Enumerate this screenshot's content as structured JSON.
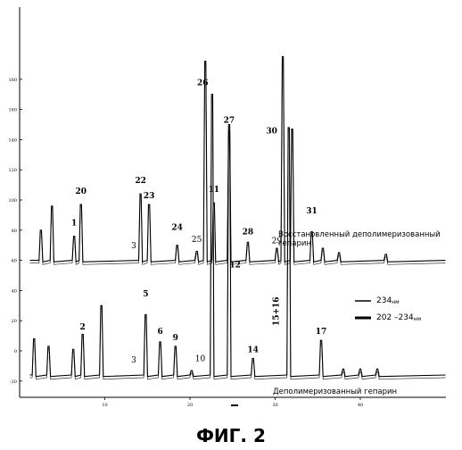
{
  "caption": "ФИГ. 2",
  "chart_data": {
    "type": "line",
    "y_ticks": [
      "180",
      "160",
      "140",
      "120",
      "100",
      "80",
      "60",
      "40",
      "20",
      "0",
      "-20"
    ],
    "x_ticks": [
      "10",
      "20",
      "30",
      "40"
    ],
    "legend": [
      {
        "label": "234",
        "sub": "нм"
      },
      {
        "label": "202 –234",
        "sub": "нм"
      }
    ],
    "panels": [
      {
        "name": "Восстановленный деполимеризованный гепарин",
        "note": [
          "Восстановленный деполимеризованный",
          "гепарин"
        ],
        "baseline": 60,
        "series": [
          {
            "x": 2.5,
            "y": 80
          },
          {
            "x": 3.8,
            "y": 96
          },
          {
            "x": 6.4,
            "y": 76
          },
          {
            "x": 7.2,
            "y": 97
          },
          {
            "x": 14.2,
            "y": 104
          },
          {
            "x": 15.2,
            "y": 97
          },
          {
            "x": 18.5,
            "y": 70
          },
          {
            "x": 20.8,
            "y": 66
          },
          {
            "x": 21.8,
            "y": 192
          },
          {
            "x": 22.8,
            "y": 98
          },
          {
            "x": 24.6,
            "y": 146
          },
          {
            "x": 26.8,
            "y": 72
          },
          {
            "x": 30.2,
            "y": 68
          },
          {
            "x": 30.9,
            "y": 195
          },
          {
            "x": 32.0,
            "y": 147
          },
          {
            "x": 34.3,
            "y": 79
          },
          {
            "x": 35.6,
            "y": 68
          },
          {
            "x": 37.5,
            "y": 65
          },
          {
            "x": 43,
            "y": 64
          }
        ],
        "peaks": [
          {
            "label": "1",
            "x": 6.4,
            "y": 82
          },
          {
            "label": "20",
            "x": 7.2,
            "y": 103
          },
          {
            "label": "3",
            "x": 13.4,
            "y": 67
          },
          {
            "label": "22",
            "x": 14.2,
            "y": 110
          },
          {
            "label": "23",
            "x": 15.2,
            "y": 100
          },
          {
            "label": "24",
            "x": 18.5,
            "y": 79
          },
          {
            "label": "25",
            "x": 20.8,
            "y": 71
          },
          {
            "label": "26",
            "x": 21.5,
            "y": 175
          },
          {
            "label": "11",
            "x": 22.8,
            "y": 104
          },
          {
            "label": "27",
            "x": 24.6,
            "y": 150
          },
          {
            "label": "28",
            "x": 26.8,
            "y": 76
          },
          {
            "label": "29",
            "x": 30.2,
            "y": 70
          },
          {
            "label": "30",
            "x": 29.6,
            "y": 143
          },
          {
            "label": "31",
            "x": 34.3,
            "y": 90
          }
        ]
      },
      {
        "name": "Деполимеризованный гепарин",
        "note": [
          "Деполимеризованный гепарин"
        ],
        "baseline": -16,
        "series": [
          {
            "x": 1.7,
            "y": 8
          },
          {
            "x": 3.4,
            "y": 3
          },
          {
            "x": 6.3,
            "y": 1
          },
          {
            "x": 7.4,
            "y": 11
          },
          {
            "x": 9.6,
            "y": 30
          },
          {
            "x": 14.8,
            "y": 24
          },
          {
            "x": 16.5,
            "y": 6
          },
          {
            "x": 18.3,
            "y": 3
          },
          {
            "x": 20.2,
            "y": -13
          },
          {
            "x": 22.6,
            "y": 170
          },
          {
            "x": 24.6,
            "y": 150
          },
          {
            "x": 27.4,
            "y": -5
          },
          {
            "x": 31.6,
            "y": 148
          },
          {
            "x": 35.4,
            "y": 7
          },
          {
            "x": 38,
            "y": -12
          },
          {
            "x": 40,
            "y": -12
          },
          {
            "x": 42,
            "y": -12
          }
        ],
        "peaks": [
          {
            "label": "2",
            "x": 7.4,
            "y": 13
          },
          {
            "label": "3",
            "x": 13.4,
            "y": -9
          },
          {
            "label": "5",
            "x": 14.8,
            "y": 35
          },
          {
            "label": "6",
            "x": 16.5,
            "y": 10
          },
          {
            "label": "9",
            "x": 18.3,
            "y": 6
          },
          {
            "label": "10",
            "x": 21.2,
            "y": -8
          },
          {
            "label": "12",
            "x": 25.3,
            "y": 54
          },
          {
            "label": "14",
            "x": 27.4,
            "y": -2
          },
          {
            "label": "15+16",
            "x": 30.4,
            "y": 25
          },
          {
            "label": "17",
            "x": 35.4,
            "y": 10
          }
        ]
      }
    ]
  }
}
